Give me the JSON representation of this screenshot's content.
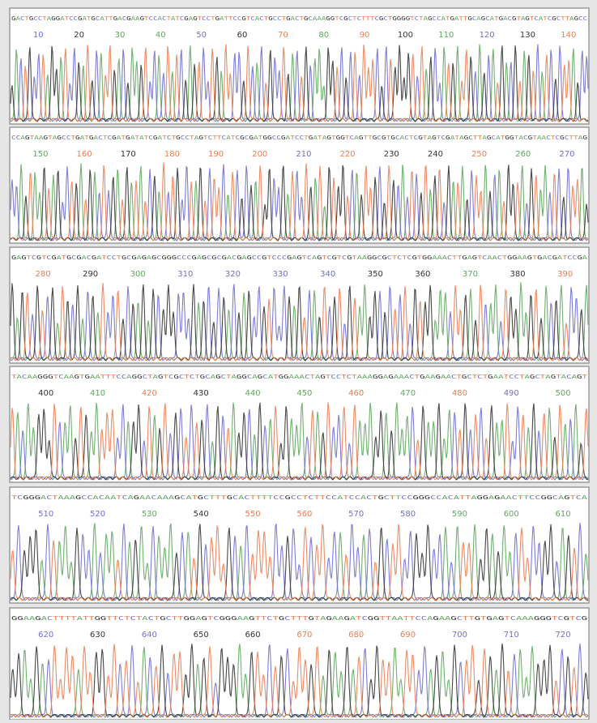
{
  "base_colors": {
    "A": "#5fa85f",
    "C": "#6f6fcf",
    "G": "#333333",
    "T": "#ea7f52"
  },
  "panels": [
    {
      "sequence": "GACTGCCTAGGATCCGATGCATTGACGAAGTCCACTATCGAGTCCTGATTCCGTCACTGCCTGACTGCAAAGGTCGCTCTTTCGCTGGGGTCTAGCCATGATTGCAGCATGACGTAGTCATCGCTTAGCC",
      "positions": [
        10,
        20,
        30,
        40,
        50,
        60,
        70,
        80,
        90,
        100,
        110,
        120,
        130,
        140
      ]
    },
    {
      "sequence": "CCAGTAAGTAGCCTGATGACTCGATGATATCGATCTGCCTAGTCTTCATCGCGATGGCCGATCCTGATAGTGGTCAGTTGCGTGCACTCGTAGTCGATAGCTTAGCATGGTACGTAACTCGCTTAG",
      "positions": [
        150,
        160,
        170,
        180,
        190,
        200,
        210,
        220,
        230,
        240,
        250,
        260,
        270
      ]
    },
    {
      "sequence": "GAGTCGTCGATGCGACGATCCTGCGAGAGCGGGCCCGAGCGCGACGAGCCGTCCCGAGTCAGTCGTCGTAAGGCGCTCTCGTGGAAACTTGAGTCAACTGGAAGTGACGATCCGA",
      "positions": [
        280,
        290,
        300,
        310,
        320,
        330,
        340,
        350,
        360,
        370,
        380,
        390
      ]
    },
    {
      "sequence": "TACAAGGGTCAAGTGAATTTCCAGGCTAGTCGCTCTGCAGCTAGGCAGCATGGAAACTAGTCCTCTAAAGGAGAAACTGAAGAACTGCTCTGAATCCTAGCTAGTACAGT",
      "positions": [
        400,
        410,
        420,
        430,
        440,
        450,
        460,
        470,
        480,
        490,
        500
      ]
    },
    {
      "sequence": "TCGGGACTAAAGCCACAATCAGAACAAAGCATGCTTTGCACTTTTCCGCCTCTTCCATCCACTGCTTCCGGGCCACATTAGGAGAACTTCCGGCAGTCA",
      "positions": [
        510,
        520,
        530,
        540,
        550,
        560,
        570,
        580,
        590,
        600,
        610
      ]
    },
    {
      "sequence": "GGAAGACTTTTATTGGTTCTCTACTGCTTGGAGTCGGGAAGTTCTGCTTTGTAGAAGATCGGTTAATTCCAGAAGCTTGTGAGTCAAAGGGTCGTCG",
      "positions": [
        620,
        630,
        640,
        650,
        660,
        670,
        680,
        690,
        700,
        710,
        720
      ]
    }
  ]
}
